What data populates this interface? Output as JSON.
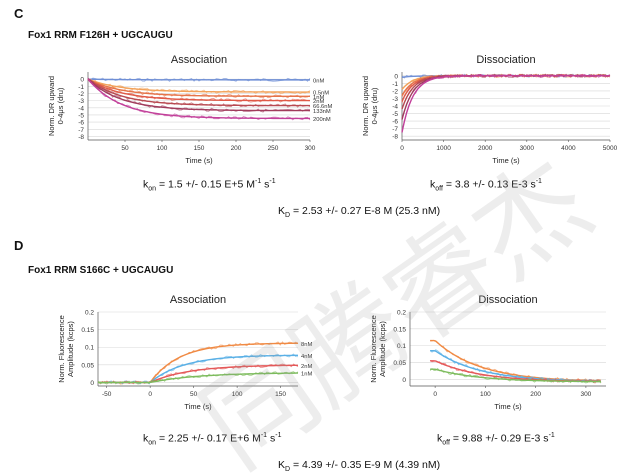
{
  "panels": [
    {
      "letter": "C",
      "title": "Fox1 RRM F126H + UGCAUGU",
      "kon": {
        "k": "k",
        "sub": "on",
        "text": " = 1.5 +/- 0.15 E+5 M",
        "sup1": "-1",
        "mid": " s",
        "sup2": "-1"
      },
      "koff": {
        "k": "k",
        "sub": "off",
        "text": " = 3.8 +/- 0.13 E-3 s",
        "sup": "-1"
      },
      "kd": {
        "k": "K",
        "sub": "D",
        "text": " = 2.53 +/- 0.27 E-8 M (25.3 nM)"
      }
    },
    {
      "letter": "D",
      "title": "Fox1 RRM S166C + UGCAUGU",
      "kon": {
        "k": "k",
        "sub": "on",
        "text": " = 2.25 +/- 0.17 E+6 M",
        "sup1": "-1",
        "mid": " s",
        "sup2": "-1"
      },
      "koff": {
        "k": "k",
        "sub": "off",
        "text": " = 9.88 +/- 0.29 E-3 s",
        "sup": "-1"
      },
      "kd": {
        "k": "K",
        "sub": "D",
        "text": " = 4.39 +/- 0.35 E-9 M (4.39 nM)"
      }
    }
  ],
  "chart_data": [
    {
      "id": "c-assoc",
      "type": "line",
      "title": "Association",
      "xlabel": "Time (s)",
      "ylabel": [
        "Norm. DR upward",
        "0-4μs (dru)"
      ],
      "xlim": [
        0,
        300
      ],
      "ylim": [
        -8.5,
        1
      ],
      "xticks": [
        50,
        100,
        150,
        200,
        250,
        300
      ],
      "yticks": [
        0,
        -1,
        -2,
        -3,
        -4,
        -5,
        -6,
        -7,
        -8
      ],
      "grid": true,
      "series": [
        {
          "name": "0nM",
          "color": "#6f8fd6",
          "points": [
            [
              0,
              -0.1
            ],
            [
              300,
              -0.1
            ]
          ]
        },
        {
          "name": "0.5nM",
          "color": "#f2a25a",
          "points": [
            [
              0,
              0
            ],
            [
              300,
              -1.8
            ]
          ]
        },
        {
          "name": "1nM",
          "color": "#e6744a",
          "points": [
            [
              0,
              0
            ],
            [
              300,
              -2.4
            ]
          ]
        },
        {
          "name": "2nM",
          "color": "#e05a48",
          "points": [
            [
              0,
              0
            ],
            [
              300,
              -3.0
            ]
          ]
        },
        {
          "name": "66.6nM",
          "color": "#b84a52",
          "points": [
            [
              0,
              0
            ],
            [
              300,
              -3.7
            ]
          ]
        },
        {
          "name": "133nM",
          "color": "#a03c5c",
          "points": [
            [
              0,
              0
            ],
            [
              300,
              -4.4
            ]
          ]
        },
        {
          "name": "200nM",
          "color": "#c2409a",
          "points": [
            [
              0,
              0
            ],
            [
              300,
              -5.5
            ]
          ]
        }
      ]
    },
    {
      "id": "c-dissoc",
      "type": "line",
      "title": "Dissociation",
      "xlabel": "Time (s)",
      "ylabel": [
        "Norm. DR upward",
        "0-4μs (dru)"
      ],
      "xlim": [
        0,
        5000
      ],
      "ylim": [
        -8.5,
        0.5
      ],
      "xticks": [
        0,
        1000,
        2000,
        3000,
        4000,
        5000
      ],
      "yticks": [
        0,
        -1,
        -2,
        -3,
        -4,
        -5,
        -6,
        -7,
        -8
      ],
      "grid": true,
      "series": [
        {
          "color": "#6f8fd6",
          "start": -0.2
        },
        {
          "color": "#f2a25a",
          "start": -1.8
        },
        {
          "color": "#e6744a",
          "start": -2.6
        },
        {
          "color": "#e05a48",
          "start": -3.4
        },
        {
          "color": "#b84a52",
          "start": -4.4
        },
        {
          "color": "#a03c5c",
          "start": -5.8
        },
        {
          "color": "#c2409a",
          "start": -7.5
        }
      ]
    },
    {
      "id": "d-assoc",
      "type": "line",
      "title": "Association",
      "xlabel": "Time (s)",
      "ylabel": [
        "Norm. Fluorescence",
        "Amplitude (kcps)"
      ],
      "xlim": [
        -60,
        170
      ],
      "ylim": [
        -0.01,
        0.2
      ],
      "xticks": [
        -50,
        0,
        50,
        100,
        150
      ],
      "yticks": [
        0,
        0.05,
        0.1,
        0.15,
        0.2
      ],
      "ytick_labels": [
        "0",
        "0.05",
        "0.1",
        "0.15",
        "0.2"
      ],
      "grid": true,
      "series": [
        {
          "name": "8nM",
          "color": "#f08a44",
          "final": 0.112
        },
        {
          "name": "4nM",
          "color": "#5ab0e6",
          "final": 0.078
        },
        {
          "name": "2nM",
          "color": "#e45858",
          "final": 0.05
        },
        {
          "name": "1nM",
          "color": "#7cbb5c",
          "final": 0.028
        }
      ]
    },
    {
      "id": "d-dissoc",
      "type": "line",
      "title": "Dissociation",
      "xlabel": "Time (s)",
      "ylabel": [
        "Norm. Fluorescence",
        "Amplitude (kcps)"
      ],
      "xlim": [
        -50,
        340
      ],
      "ylim": [
        -0.02,
        0.2
      ],
      "xticks": [
        0,
        100,
        200,
        300
      ],
      "yticks": [
        0,
        0.05,
        0.1,
        0.15,
        0.2
      ],
      "ytick_labels": [
        "0",
        "0.05",
        "0.1",
        "0.15",
        "0.2"
      ],
      "grid": true,
      "series": [
        {
          "color": "#f08a44",
          "start": 0.115
        },
        {
          "color": "#5ab0e6",
          "start": 0.085
        },
        {
          "color": "#e45858",
          "start": 0.055
        },
        {
          "color": "#7cbb5c",
          "start": 0.03
        }
      ]
    }
  ],
  "watermark": "同腾睿杰"
}
